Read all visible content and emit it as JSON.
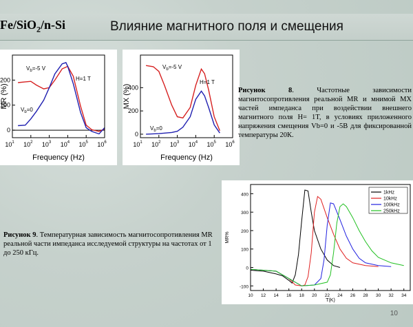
{
  "header": {
    "material_prefix": "Fe/SiO",
    "material_sub": "2",
    "material_suffix": "/n-Si",
    "title": "Влияние магнитного поля и смещения"
  },
  "figure8": {
    "caption_label": "Рисунок 8",
    "caption_text": ". Частотные зависимости магнитосопротивления реальной MR и мнимой MX частей импеданса при воздействии внешнего магнитного поля H= 1T, в условиях приложенного напряжения смещения Vb=0 и -5В для фиксированной температуры 20К."
  },
  "figure9": {
    "caption_label": "Рисунок 9",
    "caption_text": ". Температурная зависимость магнитосопротивления MR реальной части импеданса исследуемой структуры на частотах от 1 до 250 кГц."
  },
  "page_number": "10",
  "chart_data": [
    {
      "type": "line",
      "xlabel": "Frequency (Hz)",
      "ylabel": "MR (%)",
      "x_scale": "log",
      "xlim": [
        10,
        1000000
      ],
      "ylim": [
        -30,
        300
      ],
      "xticks": [
        "10",
        "10",
        "10",
        "10",
        "10",
        "10"
      ],
      "xtick_exponents": [
        "1",
        "2",
        "3",
        "4",
        "5",
        "6"
      ],
      "yticks": [
        0,
        100,
        200
      ],
      "annotations": [
        "V",
        "b",
        "=-5 V",
        "V",
        "b",
        "=0",
        "H=1 T"
      ],
      "series": [
        {
          "color": "#d62020",
          "x": [
            20,
            50,
            100,
            200,
            500,
            1000,
            2000,
            5000,
            10000,
            20000,
            50000,
            100000,
            200000,
            500000,
            1000000
          ],
          "y": [
            190,
            193,
            195,
            180,
            165,
            170,
            200,
            245,
            255,
            215,
            95,
            20,
            2,
            -5,
            5
          ]
        },
        {
          "color": "#1f1fb0",
          "x": [
            20,
            50,
            100,
            200,
            500,
            1000,
            2000,
            5000,
            8000,
            10000,
            20000,
            50000,
            100000,
            200000,
            500000,
            1000000
          ],
          "y": [
            18,
            20,
            45,
            75,
            120,
            170,
            225,
            265,
            270,
            255,
            185,
            70,
            10,
            -5,
            -15,
            10
          ]
        }
      ]
    },
    {
      "type": "line",
      "xlabel": "Frequency (Hz)",
      "ylabel": "MX (%)",
      "x_scale": "log",
      "xlim": [
        10,
        1000000
      ],
      "ylim": [
        -30,
        680
      ],
      "xticks": [
        "10",
        "10",
        "10",
        "10",
        "10",
        "10"
      ],
      "xtick_exponents": [
        "1",
        "2",
        "3",
        "4",
        "5",
        "6"
      ],
      "yticks": [
        0,
        200,
        400
      ],
      "annotations": [
        "V",
        "b",
        "=-5 V",
        "V",
        "b",
        "=0",
        "H=1 T"
      ],
      "series": [
        {
          "color": "#d62020",
          "x": [
            20,
            50,
            100,
            200,
            500,
            1000,
            2000,
            5000,
            10000,
            20000,
            30000,
            50000,
            100000,
            200000
          ],
          "y": [
            590,
            580,
            540,
            420,
            250,
            150,
            140,
            230,
            420,
            560,
            520,
            380,
            150,
            30
          ]
        },
        {
          "color": "#1f1fb0",
          "x": [
            20,
            100,
            500,
            1000,
            2000,
            5000,
            10000,
            20000,
            30000,
            50000,
            100000,
            200000
          ],
          "y": [
            0,
            5,
            15,
            25,
            60,
            150,
            300,
            370,
            330,
            230,
            80,
            10
          ]
        }
      ]
    },
    {
      "type": "line",
      "xlabel": "T(K)",
      "ylabel": "MR%",
      "xlim": [
        10,
        35
      ],
      "ylim": [
        -125,
        450
      ],
      "xticks": [
        10,
        12,
        14,
        16,
        18,
        20,
        22,
        24,
        26,
        28,
        30,
        32,
        34
      ],
      "yticks": [
        -100,
        0,
        100,
        200,
        300,
        400
      ],
      "legend": "top-right",
      "series": [
        {
          "name": "1kHz",
          "color": "#000000",
          "x": [
            10,
            12,
            14,
            15,
            16,
            16.5,
            17,
            17.5,
            18,
            18.5,
            19,
            19.5,
            20,
            21,
            22,
            23,
            24
          ],
          "y": [
            -15,
            -20,
            -35,
            -45,
            -70,
            -85,
            -40,
            70,
            250,
            420,
            415,
            300,
            200,
            100,
            40,
            10,
            0
          ]
        },
        {
          "name": "10kHz",
          "color": "#e02020",
          "x": [
            10,
            14,
            16,
            17,
            18,
            18.5,
            19,
            19.5,
            20,
            20.5,
            21,
            22,
            23,
            24,
            25,
            26,
            28,
            30
          ],
          "y": [
            -10,
            -20,
            -60,
            -95,
            -100,
            -95,
            -50,
            80,
            300,
            385,
            370,
            270,
            180,
            100,
            50,
            25,
            10,
            5
          ]
        },
        {
          "name": "100kHz",
          "color": "#2020e0",
          "x": [
            10,
            14,
            16,
            18,
            20,
            21,
            21.5,
            22,
            22.5,
            23,
            24,
            25,
            26,
            27,
            28,
            30,
            32
          ],
          "y": [
            -10,
            -20,
            -60,
            -100,
            -95,
            -60,
            40,
            230,
            350,
            345,
            260,
            170,
            100,
            50,
            25,
            10,
            5
          ]
        },
        {
          "name": "250kHz",
          "color": "#20c020",
          "x": [
            10,
            14,
            16,
            18,
            20,
            22,
            22.5,
            23,
            23.5,
            24,
            24.5,
            25,
            26,
            27,
            28,
            29,
            30,
            32,
            34
          ],
          "y": [
            -10,
            -20,
            -60,
            -100,
            -95,
            -80,
            -40,
            80,
            240,
            330,
            345,
            330,
            270,
            200,
            140,
            90,
            55,
            25,
            10
          ]
        }
      ]
    }
  ]
}
